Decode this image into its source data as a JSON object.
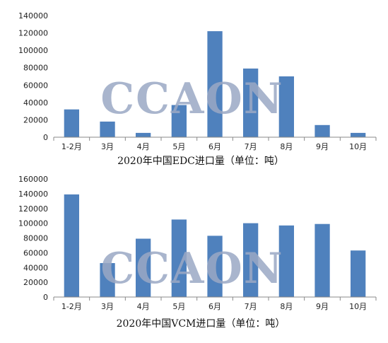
{
  "watermark": "CCAON",
  "colors": {
    "bar": "#4f81bd",
    "axis": "#888888",
    "watermark": "#9aa8c4"
  },
  "chart_data": [
    {
      "type": "bar",
      "title": "2020年中国EDC进口量（单位：吨）",
      "categories": [
        "1-2月",
        "3月",
        "4月",
        "5月",
        "6月",
        "7月",
        "8月",
        "9月",
        "10月"
      ],
      "values": [
        32000,
        18000,
        5000,
        37000,
        122000,
        79000,
        70000,
        14000,
        5000
      ],
      "yticks": [
        "0",
        "20000",
        "40000",
        "60000",
        "80000",
        "100000",
        "120000",
        "140000"
      ],
      "ylim": [
        0,
        140000
      ],
      "grid": false
    },
    {
      "type": "bar",
      "title": "2020年中国VCM进口量（单位：吨）",
      "categories": [
        "1-2月",
        "3月",
        "4月",
        "5月",
        "6月",
        "7月",
        "8月",
        "9月",
        "10月"
      ],
      "values": [
        139000,
        46000,
        79000,
        105000,
        83000,
        100000,
        97000,
        99000,
        63000
      ],
      "yticks": [
        "0",
        "20000",
        "40000",
        "60000",
        "80000",
        "100000",
        "120000",
        "140000",
        "160000"
      ],
      "ylim": [
        0,
        160000
      ],
      "grid": false
    }
  ]
}
